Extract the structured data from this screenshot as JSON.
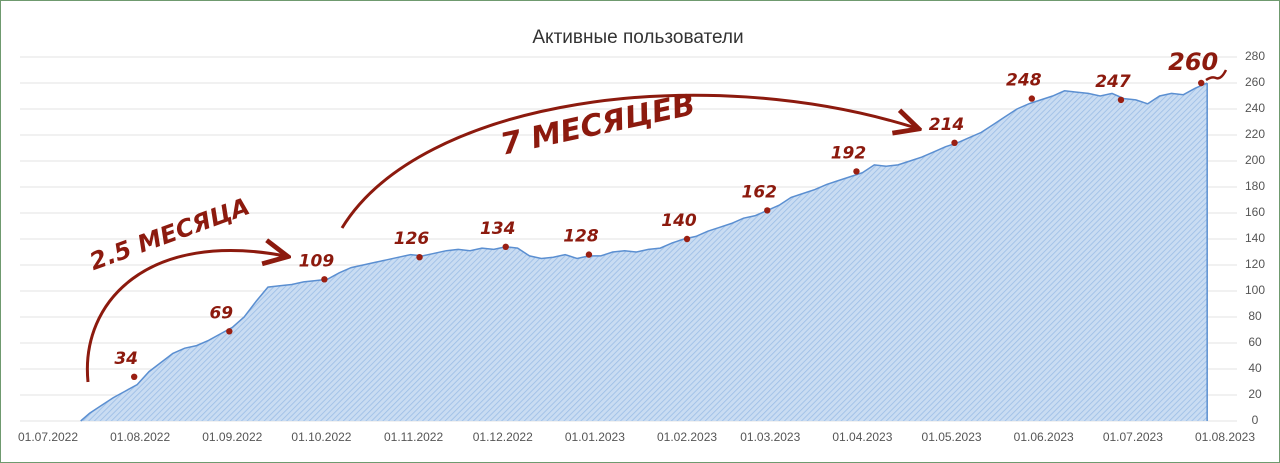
{
  "chart_data": {
    "type": "area",
    "title": "Активные пользователи",
    "series": [
      {
        "color": "#5b8fd1",
        "x": [
          11,
          14,
          18,
          22,
          26,
          30,
          34,
          38,
          42,
          46,
          50,
          54,
          58,
          62,
          66,
          70,
          74,
          78,
          82,
          86,
          90,
          94,
          98,
          102,
          106,
          110,
          114,
          118,
          122,
          126,
          130,
          134,
          138,
          142,
          146,
          150,
          154,
          158,
          162,
          166,
          170,
          174,
          178,
          182,
          186,
          190,
          194,
          198,
          202,
          206,
          210,
          214,
          218,
          222,
          226,
          230,
          234,
          238,
          242,
          246,
          250,
          254,
          258,
          262,
          266,
          270,
          274,
          278,
          282,
          286,
          290,
          294,
          298,
          302,
          306,
          310,
          314,
          318,
          322,
          326,
          330,
          334,
          338,
          342,
          346,
          350,
          354,
          358,
          362,
          366,
          370,
          374,
          378,
          382,
          386,
          390
        ],
        "values": [
          0,
          6,
          12,
          18,
          23,
          28,
          38,
          45,
          52,
          56,
          58,
          62,
          67,
          72,
          80,
          92,
          103,
          104,
          105,
          107,
          108,
          109,
          114,
          118,
          120,
          122,
          124,
          126,
          128,
          127,
          129,
          131,
          132,
          131,
          133,
          132,
          134,
          133,
          127,
          125,
          126,
          128,
          125,
          127,
          127,
          130,
          131,
          130,
          132,
          133,
          137,
          140,
          142,
          146,
          149,
          152,
          156,
          158,
          162,
          166,
          172,
          175,
          178,
          182,
          185,
          188,
          191,
          197,
          196,
          197,
          200,
          203,
          207,
          211,
          214,
          218,
          222,
          228,
          234,
          240,
          244,
          247,
          250,
          254,
          253,
          252,
          250,
          252,
          248,
          247,
          244,
          250,
          252,
          251,
          256,
          260
        ]
      }
    ],
    "points": [
      {
        "x": 29,
        "value": 34
      },
      {
        "x": 61,
        "value": 69
      },
      {
        "x": 93,
        "value": 109
      },
      {
        "x": 125,
        "value": 126
      },
      {
        "x": 154,
        "value": 134
      },
      {
        "x": 182,
        "value": 128
      },
      {
        "x": 215,
        "value": 140
      },
      {
        "x": 242,
        "value": 162
      },
      {
        "x": 272,
        "value": 192
      },
      {
        "x": 305,
        "value": 214
      },
      {
        "x": 331,
        "value": 248
      },
      {
        "x": 361,
        "value": 247
      },
      {
        "x": 388,
        "value": 260
      }
    ],
    "annotations": [
      "2.5 МЕСЯЦА",
      "7 МЕСЯЦЕВ"
    ],
    "xlim": [
      0,
      396
    ],
    "xticks": [
      {
        "value": 0,
        "label": "01.07.2022"
      },
      {
        "value": 31,
        "label": "01.08.2022"
      },
      {
        "value": 62,
        "label": "01.09.2022"
      },
      {
        "value": 92,
        "label": "01.10.2022"
      },
      {
        "value": 123,
        "label": "01.11.2022"
      },
      {
        "value": 153,
        "label": "01.12.2022"
      },
      {
        "value": 184,
        "label": "01.01.2023"
      },
      {
        "value": 215,
        "label": "01.02.2023"
      },
      {
        "value": 243,
        "label": "01.03.2023"
      },
      {
        "value": 274,
        "label": "01.04.2023"
      },
      {
        "value": 304,
        "label": "01.05.2023"
      },
      {
        "value": 335,
        "label": "01.06.2023"
      },
      {
        "value": 365,
        "label": "01.07.2023"
      },
      {
        "value": 396,
        "label": "01.08.2023"
      }
    ],
    "ylim": [
      0,
      280
    ],
    "yticks": [
      0,
      20,
      40,
      60,
      80,
      100,
      120,
      140,
      160,
      180,
      200,
      220,
      240,
      260,
      280
    ],
    "grid": true
  }
}
